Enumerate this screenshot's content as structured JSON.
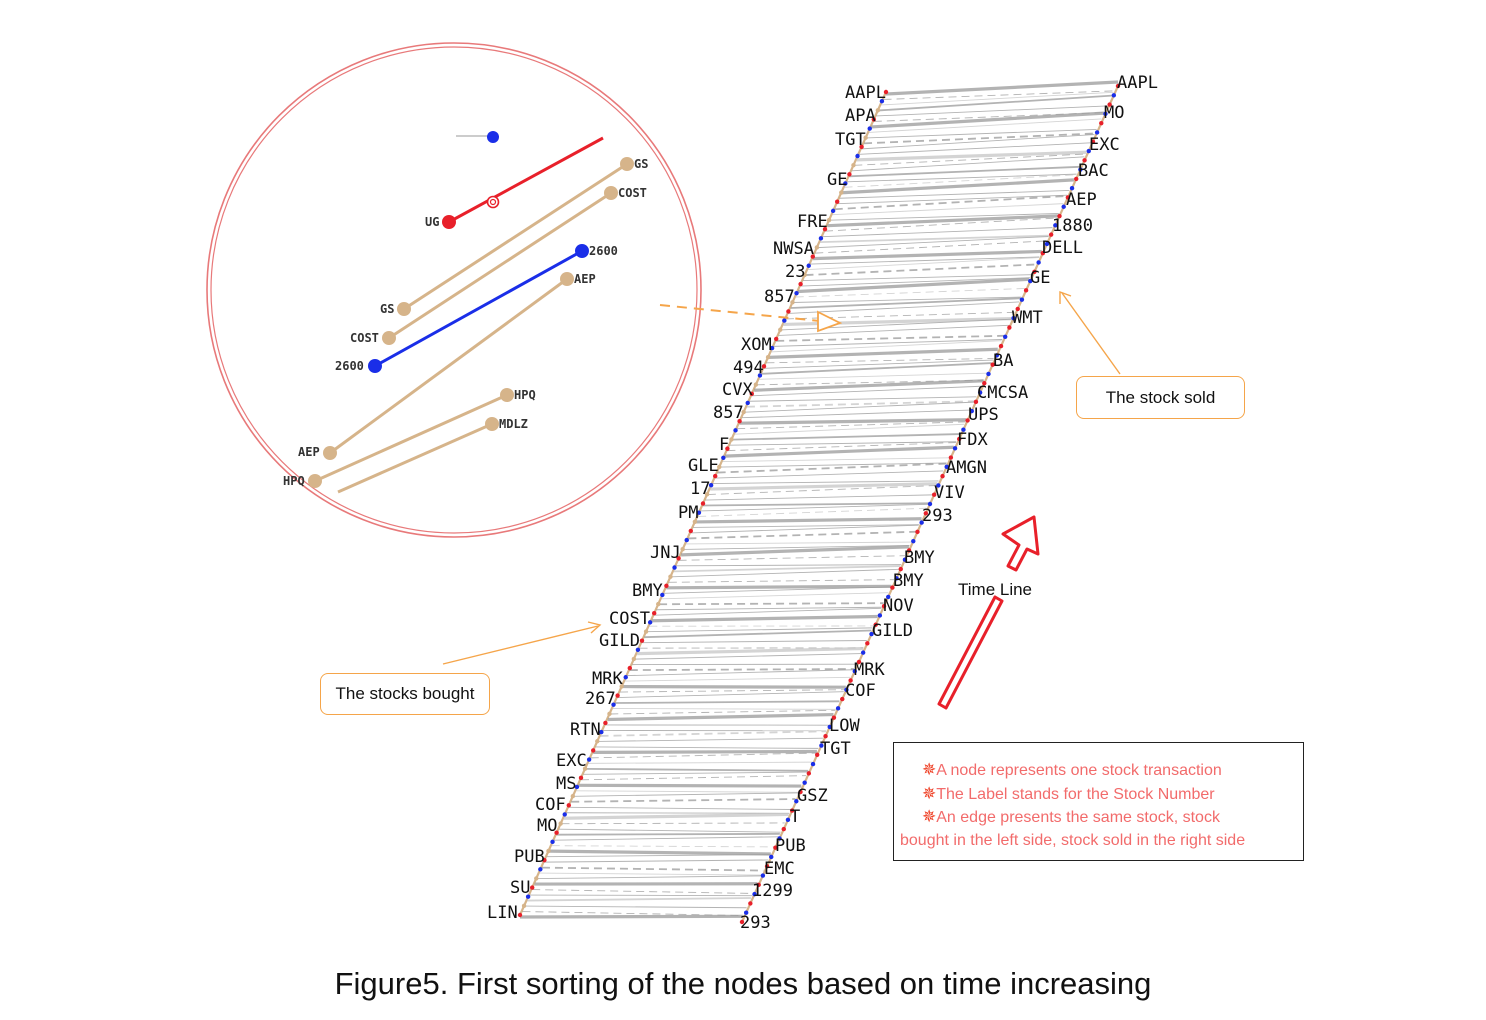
{
  "caption": "Figure5. First sorting of the nodes based on time increasing",
  "callouts": {
    "sold": "The stock sold",
    "bought": "The stocks bought"
  },
  "timeline_label": "Time Line",
  "legend": {
    "items": [
      "A node represents one stock transaction",
      "The Label stands for the Stock Number",
      "An edge presents the same stock, stock"
    ],
    "continuation": "bought in the left side, stock sold in the right side"
  },
  "left_labels": [
    "AAPL",
    "APA",
    "TGT",
    "GE",
    "FRE",
    "NWSA",
    "23",
    "857",
    "XOM",
    "494",
    "CVX",
    "857",
    "F",
    "GLE",
    "17",
    "PM",
    "JNJ",
    "BMY",
    "COST",
    "GILD",
    "MRK",
    "267",
    "RTN",
    "EXC",
    "MS",
    "COF",
    "MO",
    "PUB",
    "SU",
    "LIN"
  ],
  "right_labels": [
    "AAPL",
    "MO",
    "EXC",
    "BAC",
    "AEP",
    "1880",
    "DELL",
    "GE",
    "WMT",
    "BA",
    "CMCSA",
    "UPS",
    "FDX",
    "AMGN",
    "VIV",
    "293",
    "BMY",
    "BMY",
    "NOV",
    "GILD",
    "MRK",
    "COF",
    "LOW",
    "TGT",
    "GSZ",
    "T",
    "PUB",
    "EMC",
    "1299",
    "293"
  ],
  "zoom": {
    "top_labels": [
      "GS",
      "COST",
      "2600",
      "AEP"
    ],
    "top_partial": "UG",
    "bottom_labels": [
      "GS",
      "COST",
      "2600",
      "AEP",
      "HPQ"
    ],
    "lower_right_labels": [
      "HPQ",
      "MDLZ"
    ]
  },
  "colors": {
    "edge_tan": "#d6b48a",
    "edge_gray": "#9a9a9a",
    "node_blue": "#1a2ee8",
    "node_red": "#e8202a",
    "circle": "#e8797a",
    "callout_border": "#f5a54a",
    "arrow_red": "#e8202a",
    "legend_text": "#f26b6b"
  }
}
